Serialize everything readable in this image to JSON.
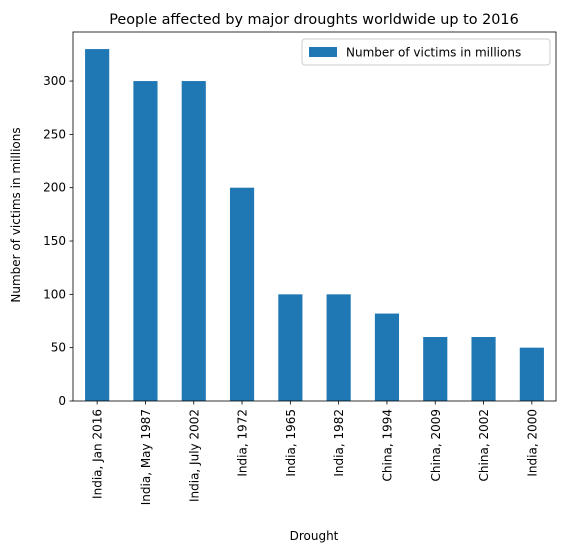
{
  "chart_data": {
    "type": "bar",
    "title": "People affected by major droughts worldwide up to 2016",
    "xlabel": "Drought",
    "ylabel": "Number of victims in millions",
    "ylim": [
      0,
      346
    ],
    "yticks": [
      0,
      50,
      100,
      150,
      200,
      250,
      300
    ],
    "grid": false,
    "legend_position": "top-right",
    "categories": [
      "India, Jan 2016",
      "India, May 1987",
      "India, July 2002",
      "India, 1972",
      "India, 1965",
      "India, 1982",
      "China, 1994",
      "China, 2009",
      "China, 2002",
      "India, 2000"
    ],
    "series": [
      {
        "name": "Number of victims in millions",
        "color": "#1f77b4",
        "values": [
          330,
          300,
          300,
          200,
          100,
          100,
          82,
          60,
          60,
          50
        ]
      }
    ]
  }
}
